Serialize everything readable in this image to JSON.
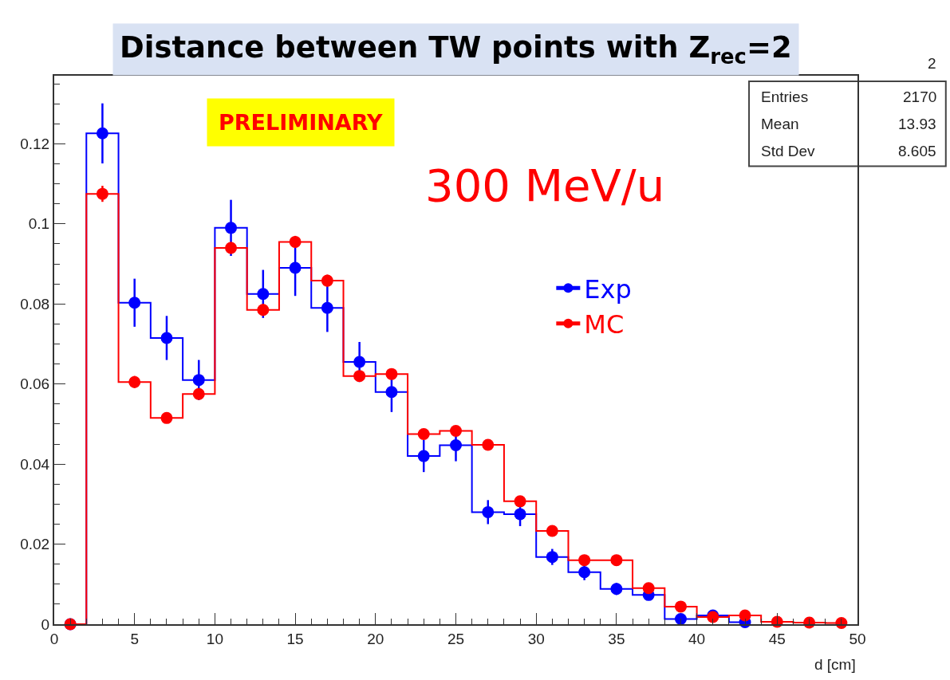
{
  "chart_data": {
    "type": "step",
    "title": "Distance between TW points with Z$_{rec}$=2",
    "xlabel": "d [cm]",
    "x": [
      1,
      3,
      5,
      7,
      9,
      11,
      13,
      15,
      17,
      19,
      21,
      23,
      25,
      27,
      29,
      31,
      33,
      35,
      37,
      39,
      41,
      43,
      45,
      47,
      49
    ],
    "series": [
      {
        "name": "Exp",
        "color": "#0000ff",
        "values": [
          0,
          0.1226,
          0.0803,
          0.0715,
          0.061,
          0.099,
          0.0825,
          0.089,
          0.079,
          0.0655,
          0.058,
          0.042,
          0.0447,
          0.028,
          0.0275,
          0.0168,
          0.013,
          0.0088,
          0.0073,
          0.0013,
          0.0022,
          0.0005,
          null,
          null,
          null
        ],
        "errors": [
          null,
          0.0075,
          0.006,
          0.0055,
          0.005,
          0.007,
          0.006,
          0.007,
          0.006,
          0.005,
          0.005,
          0.004,
          0.004,
          0.003,
          0.003,
          0.002,
          0.002,
          0.0015,
          0.0012,
          0.001,
          0.001,
          0.0005,
          null,
          null,
          null
        ]
      },
      {
        "name": "MC",
        "color": "#ff0000",
        "values": [
          0,
          0.1075,
          0.0605,
          0.0515,
          0.0575,
          0.094,
          0.0785,
          0.0955,
          0.0858,
          0.062,
          0.0625,
          0.0475,
          0.0483,
          0.0448,
          0.0307,
          0.0233,
          0.016,
          0.016,
          0.009,
          0.0044,
          0.0018,
          0.0022,
          0.0006,
          0.0004,
          0.0003
        ],
        "errors": [
          null,
          0.002,
          0.0015,
          0.0012,
          0.0012,
          0.0015,
          0.0015,
          0.0015,
          0.0015,
          0.0012,
          0.0012,
          0.001,
          0.001,
          0.001,
          0.001,
          0.001,
          0.0008,
          0.0008,
          0.0006,
          0.0005,
          0.0004,
          0.0004,
          null,
          null,
          null
        ]
      }
    ],
    "xlim": [
      0,
      50
    ],
    "xticks": [
      0,
      5,
      10,
      15,
      20,
      25,
      30,
      35,
      40,
      45,
      50
    ],
    "ylim": [
      0,
      0.137
    ],
    "yticks": [
      0,
      0.02,
      0.04,
      0.06,
      0.08,
      {
        "value": 0.1,
        "label": "0.1"
      },
      0.12
    ],
    "marker": "circle",
    "legend": "right",
    "grid": false,
    "annotations": [
      "PRELIMINARY",
      "300 MeV/u",
      "2",
      "Entries",
      "2170",
      "Mean",
      "13.93",
      "Std Dev",
      "8.605"
    ]
  }
}
